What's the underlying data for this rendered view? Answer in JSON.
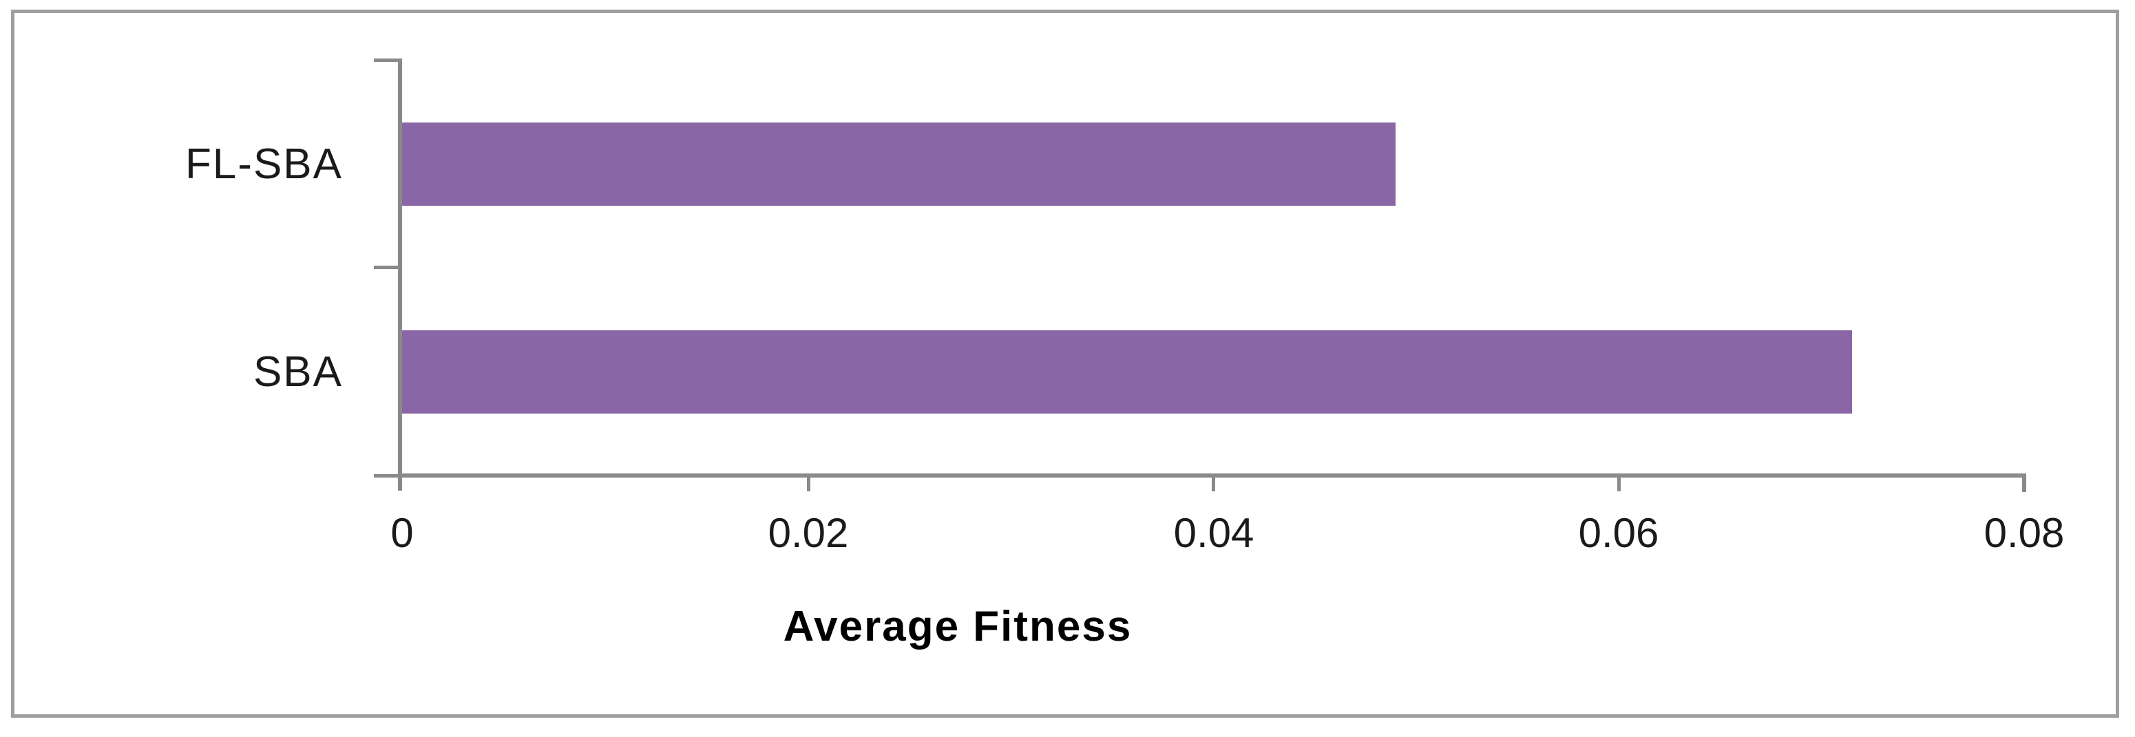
{
  "chart_data": {
    "type": "bar",
    "orientation": "horizontal",
    "categories": [
      "FL-SBA",
      "SBA"
    ],
    "values": [
      0.049,
      0.0715
    ],
    "series": [
      {
        "name": "Average Fitness",
        "values": [
          0.049,
          0.0715
        ]
      }
    ],
    "title": "",
    "xlabel": "Average Fitness",
    "ylabel": "",
    "xlim": [
      0,
      0.08
    ],
    "x_ticks": [
      0,
      0.02,
      0.04,
      0.06,
      0.08
    ],
    "x_tick_labels": [
      "0",
      "0.02",
      "0.04",
      "0.06",
      "0.08"
    ],
    "grid": false,
    "legend": false,
    "colors": {
      "bar": "#8a66a7",
      "axis": "#8a8a8a",
      "chart_border": "#9e9e9e",
      "text": "#1a1a1a"
    }
  }
}
